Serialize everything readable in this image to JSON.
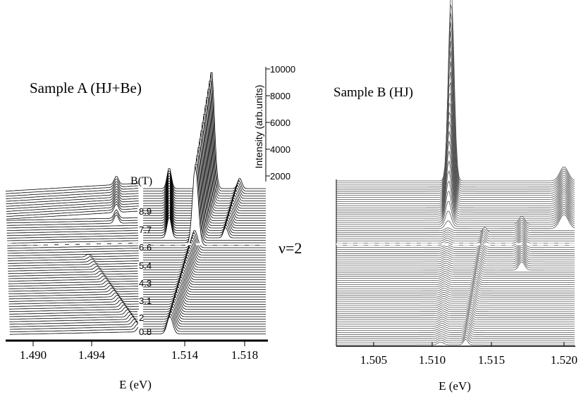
{
  "panel_a": {
    "title": "Sample A (HJ+Be)",
    "x_label": "E (eV)",
    "x_ticks": [
      "1.490",
      "1.494",
      "1.514",
      "1.518"
    ],
    "b_label": "B(T)",
    "b_ticks": [
      "8.9",
      "7.7",
      "6.6",
      "5.4",
      "4.3",
      "3.1",
      "2",
      "0.8"
    ],
    "intensity_label": "Intensity (arb.units)",
    "intensity_ticks": [
      "10000",
      "8000",
      "6000",
      "4000",
      "2000"
    ]
  },
  "nu_label": "ν=2",
  "panel_b": {
    "title": "Sample B (HJ)",
    "x_label": "E (eV)",
    "x_ticks": [
      "1.505",
      "1.510",
      "1.515",
      "1.520"
    ]
  }
}
